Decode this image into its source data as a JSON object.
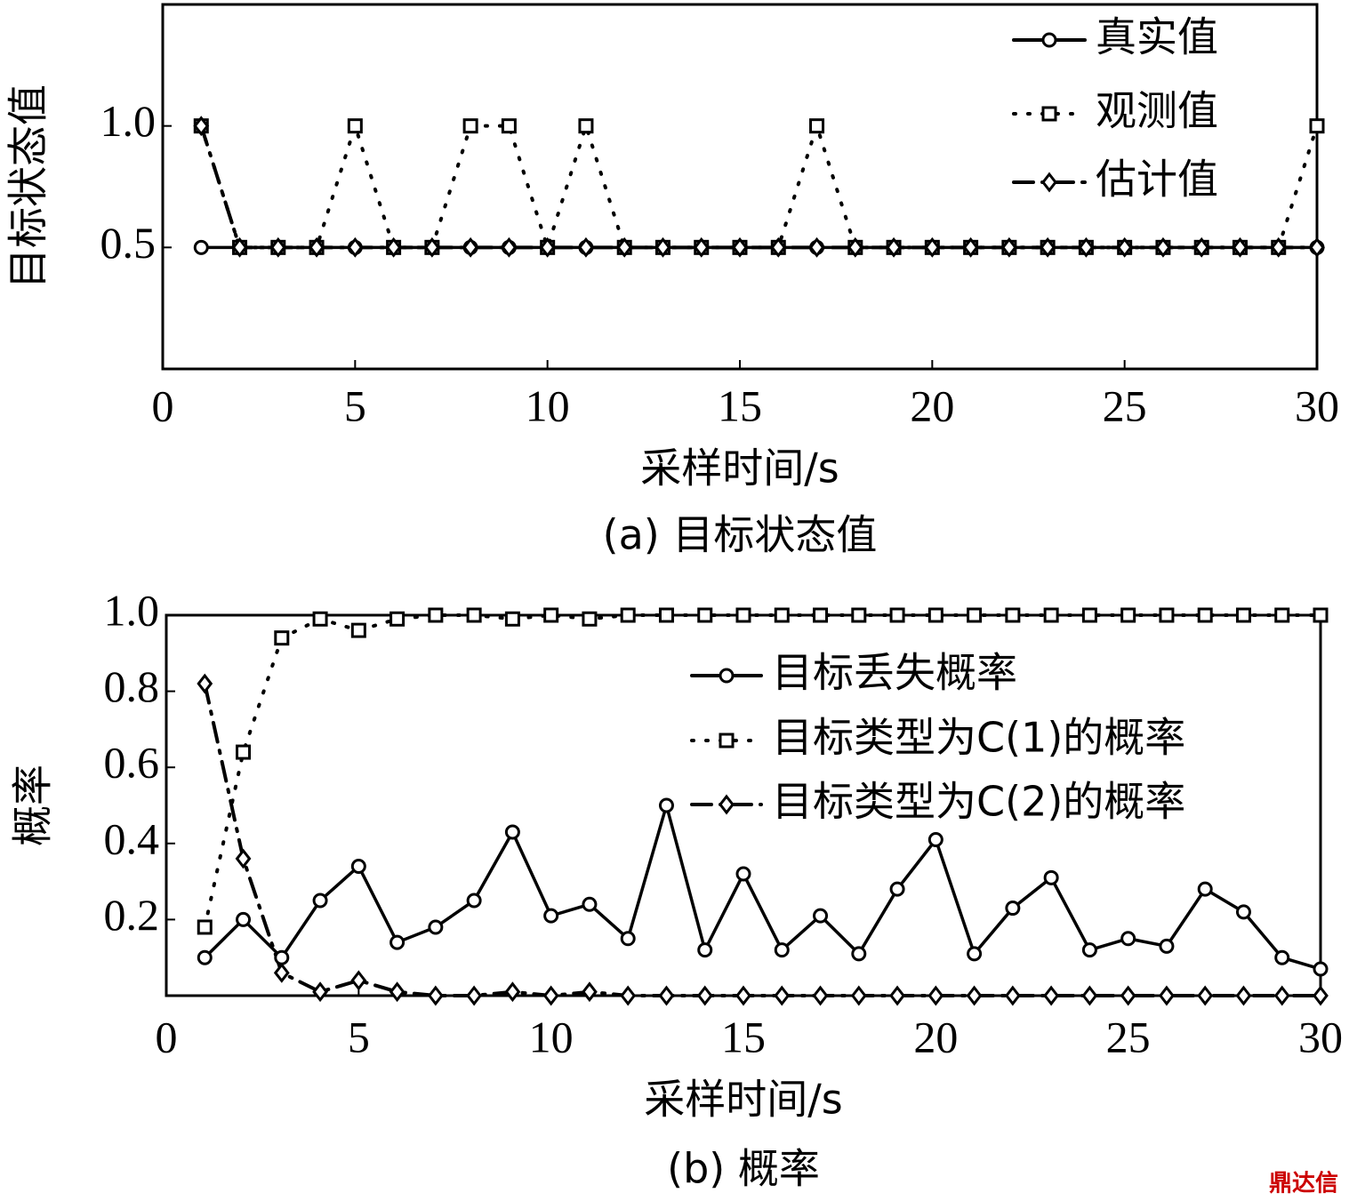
{
  "chart_data": [
    {
      "type": "line",
      "caption": "(a) 目标状态值",
      "x_label": "采样时间/s",
      "y_label": "目标状态值",
      "xlim": [
        0,
        30
      ],
      "xticks": [
        0,
        5,
        10,
        15,
        20,
        25,
        30
      ],
      "ylim": [
        0,
        1.5
      ],
      "yticks": [
        0.5,
        {
          "value": 1.0,
          "label": "1.0"
        }
      ],
      "legend": "upper right",
      "x": [
        1,
        2,
        3,
        4,
        5,
        6,
        7,
        8,
        9,
        10,
        11,
        12,
        13,
        14,
        15,
        16,
        17,
        18,
        19,
        20,
        21,
        22,
        23,
        24,
        25,
        26,
        27,
        28,
        29,
        30
      ],
      "series": [
        {
          "name": "真实值",
          "color": "#000000",
          "marker": "circle",
          "line_style": "solid",
          "values": [
            0.5,
            0.5,
            0.5,
            0.5,
            0.5,
            0.5,
            0.5,
            0.5,
            0.5,
            0.5,
            0.5,
            0.5,
            0.5,
            0.5,
            0.5,
            0.5,
            0.5,
            0.5,
            0.5,
            0.5,
            0.5,
            0.5,
            0.5,
            0.5,
            0.5,
            0.5,
            0.5,
            0.5,
            0.5,
            0.5
          ]
        },
        {
          "name": "观测值",
          "color": "#000000",
          "marker": "square",
          "line_style": "dotted",
          "values": [
            1,
            0.5,
            0.5,
            0.5,
            1,
            0.5,
            0.5,
            1,
            1,
            0.5,
            1,
            0.5,
            0.5,
            0.5,
            0.5,
            0.5,
            1,
            0.5,
            0.5,
            0.5,
            0.5,
            0.5,
            0.5,
            0.5,
            0.5,
            0.5,
            0.5,
            0.5,
            0.5,
            1
          ]
        },
        {
          "name": "估计值",
          "color": "#000000",
          "marker": "diamond",
          "line_style": "dashdot",
          "values": [
            1,
            0.5,
            0.5,
            0.5,
            0.5,
            0.5,
            0.5,
            0.5,
            0.5,
            0.5,
            0.5,
            0.5,
            0.5,
            0.5,
            0.5,
            0.5,
            0.5,
            0.5,
            0.5,
            0.5,
            0.5,
            0.5,
            0.5,
            0.5,
            0.5,
            0.5,
            0.5,
            0.5,
            0.5,
            0.5
          ]
        }
      ]
    },
    {
      "type": "line",
      "caption": "(b) 概率",
      "x_label": "采样时间/s",
      "y_label": "概率",
      "xlim": [
        0,
        30
      ],
      "xticks": [
        0,
        5,
        10,
        15,
        20,
        25,
        30
      ],
      "ylim": [
        0,
        1
      ],
      "yticks": [
        0.2,
        0.4,
        0.6,
        0.8,
        {
          "value": 1.0,
          "label": "1.0"
        }
      ],
      "legend": "upper right",
      "x": [
        1,
        2,
        3,
        4,
        5,
        6,
        7,
        8,
        9,
        10,
        11,
        12,
        13,
        14,
        15,
        16,
        17,
        18,
        19,
        20,
        21,
        22,
        23,
        24,
        25,
        26,
        27,
        28,
        29,
        30
      ],
      "series": [
        {
          "name": "目标丢失概率",
          "color": "#000000",
          "marker": "circle",
          "line_style": "solid",
          "values": [
            0.1,
            0.2,
            0.1,
            0.25,
            0.34,
            0.14,
            0.18,
            0.25,
            0.43,
            0.21,
            0.24,
            0.15,
            0.5,
            0.12,
            0.32,
            0.12,
            0.21,
            0.11,
            0.28,
            0.41,
            0.11,
            0.23,
            0.31,
            0.12,
            0.15,
            0.13,
            0.28,
            0.22,
            0.1,
            0.07
          ]
        },
        {
          "name": "目标类型为C(1)的概率",
          "color": "#000000",
          "marker": "square",
          "line_style": "dotted",
          "values": [
            0.18,
            0.64,
            0.94,
            0.99,
            0.96,
            0.99,
            1,
            1,
            0.99,
            1,
            0.99,
            1,
            1,
            1,
            1,
            1,
            1,
            1,
            1,
            1,
            1,
            1,
            1,
            1,
            1,
            1,
            1,
            1,
            1,
            1
          ]
        },
        {
          "name": "目标类型为C(2)的概率",
          "color": "#000000",
          "marker": "diamond",
          "line_style": "dashdot",
          "values": [
            0.82,
            0.36,
            0.06,
            0.01,
            0.04,
            0.01,
            0,
            0,
            0.01,
            0,
            0.01,
            0,
            0,
            0,
            0,
            0,
            0,
            0,
            0,
            0,
            0,
            0,
            0,
            0,
            0,
            0,
            0,
            0,
            0,
            0
          ]
        }
      ]
    }
  ],
  "watermark": "鼎达信"
}
